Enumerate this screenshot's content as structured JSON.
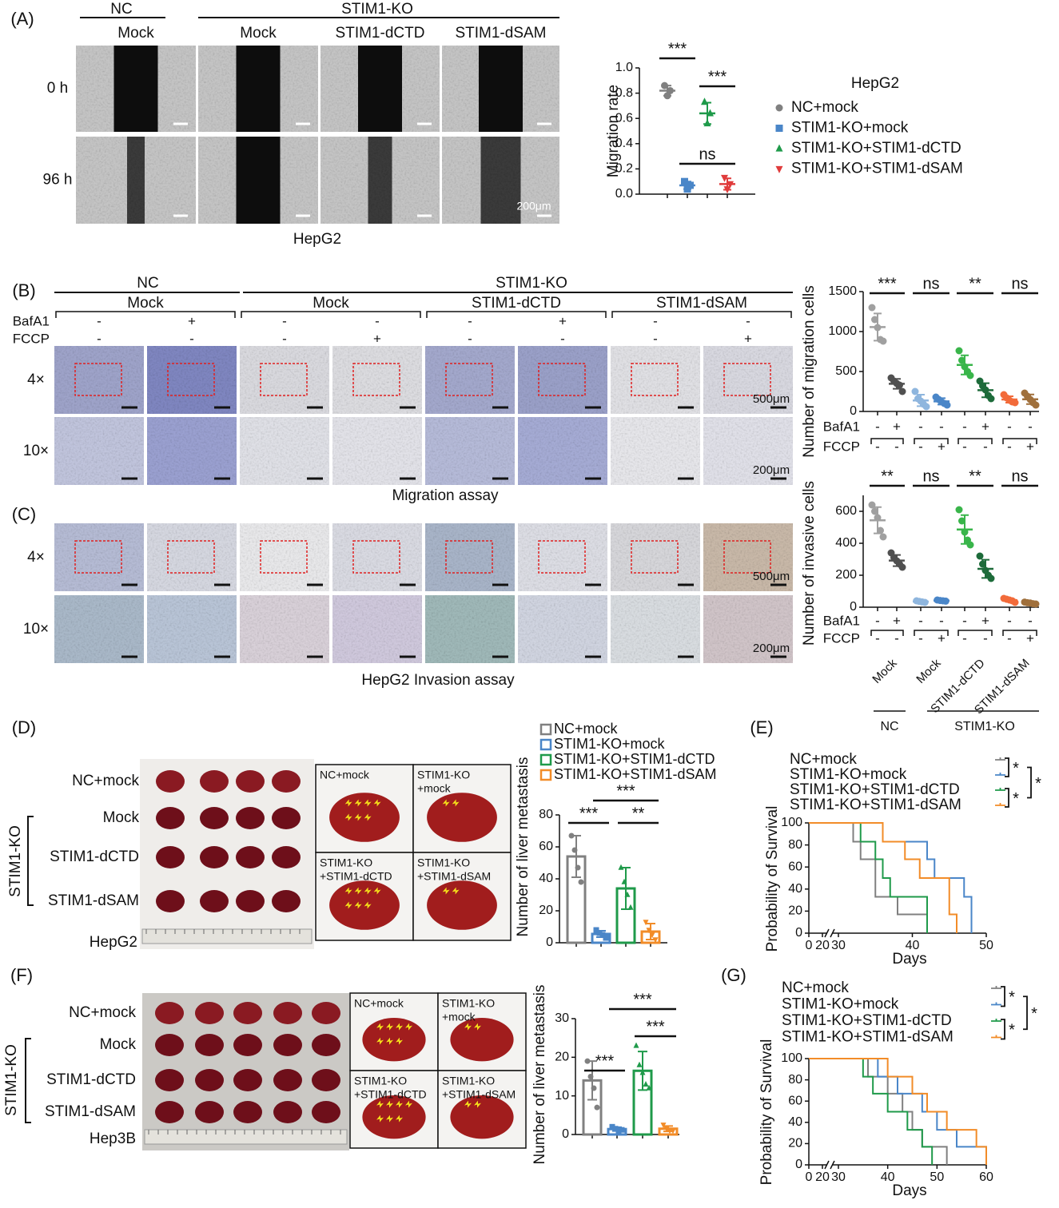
{
  "panels": {
    "labels": [
      "(A)",
      "(B)",
      "(C)",
      "(D)",
      "(E)",
      "(F)",
      "(G)"
    ],
    "a": {
      "header_groups": [
        "NC",
        "STIM1-KO"
      ],
      "columns": [
        "Mock",
        "Mock",
        "STIM1-dCTD",
        "STIM1-dSAM"
      ],
      "rows": [
        "0 h",
        "96 h"
      ],
      "scale_bar": "200μm",
      "caption": "HepG2"
    },
    "bc": {
      "header_groups": [
        "NC",
        "STIM1-KO"
      ],
      "columns": [
        "Mock",
        "Mock",
        "STIM1-dCTD",
        "STIM1-dSAM"
      ],
      "treatments": [
        {
          "name": "BafA1",
          "marks": [
            "-",
            "+",
            "-",
            "-",
            "-",
            "+",
            "-",
            "-"
          ]
        },
        {
          "name": "FCCP",
          "marks": [
            "-",
            "-",
            "-",
            "+",
            "-",
            "-",
            "-",
            "+"
          ]
        }
      ],
      "rows": [
        "4×",
        "10×"
      ],
      "scale_bars": [
        "500μm",
        "200μm"
      ],
      "captions": [
        "Migration assay",
        "HepG2 Invasion assay"
      ]
    },
    "d": {
      "rows": [
        "NC+mock",
        "Mock",
        "STIM1-dCTD",
        "STIM1-dSAM"
      ],
      "group": "STIM1-KO",
      "cell_line": "HepG2",
      "insets": [
        [
          "NC+mock"
        ],
        [
          "STIM1-KO",
          "+mock"
        ],
        [
          "STIM1-KO",
          "+STIM1-dCTD"
        ],
        [
          "STIM1-KO",
          "+STIM1-dSAM"
        ]
      ]
    },
    "f": {
      "rows": [
        "NC+mock",
        "Mock",
        "STIM1-dCTD",
        "STIM1-dSAM"
      ],
      "group": "STIM1-KO",
      "cell_line": "Hep3B",
      "insets": [
        [
          "NC+mock"
        ],
        [
          "STIM1-KO",
          "+mock"
        ],
        [
          "STIM1-KO",
          "+STIM1-dCTD"
        ],
        [
          "STIM1-KO",
          "+STIM1-dSAM"
        ]
      ]
    }
  },
  "chart_data": [
    {
      "type": "dot",
      "ylabel": "Migration rate",
      "legend_title": "HepG2",
      "ylim": [
        0,
        1
      ],
      "yticks": [
        {
          "value": 0,
          "label": "0.0"
        },
        0.2,
        0.4,
        0.6,
        0.8,
        {
          "value": 1,
          "label": "1.0"
        }
      ],
      "series": [
        {
          "name": "NC+mock",
          "color": "#808080",
          "marker": "circle",
          "values": [
            0.86,
            0.78,
            0.82
          ],
          "mean": 0.82,
          "sd": 0.04
        },
        {
          "name": "STIM1-KO+mock",
          "color": "#4a86c8",
          "marker": "square",
          "values": [
            0.1,
            0.04,
            0.07
          ],
          "mean": 0.07,
          "sd": 0.03
        },
        {
          "name": "STIM1-KO+STIM1-dCTD",
          "color": "#1f9a4a",
          "marker": "triangle",
          "values": [
            0.73,
            0.56,
            0.64
          ],
          "mean": 0.64,
          "sd": 0.085
        },
        {
          "name": "STIM1-KO+STIM1-dSAM",
          "color": "#e03c3c",
          "marker": "triangle-down",
          "values": [
            0.13,
            0.04,
            0.08
          ],
          "mean": 0.08,
          "sd": 0.045
        }
      ],
      "significance": [
        "***",
        "***",
        "ns"
      ]
    },
    {
      "type": "dot",
      "ylabel": "Number of  migration cells",
      "ylim": [
        0,
        1500
      ],
      "yticks": [
        0,
        500,
        1000,
        1500
      ],
      "series": [
        {
          "color": "#a0a0a0",
          "values": [
            1300,
            1150,
            1050,
            900,
            880
          ],
          "mean": 1056,
          "sd": 170
        },
        {
          "color": "#505050",
          "values": [
            420,
            380,
            350,
            330,
            250
          ],
          "mean": 346,
          "sd": 62
        },
        {
          "color": "#8fb6de",
          "values": [
            250,
            160,
            130,
            90,
            60
          ],
          "mean": 138,
          "sd": 72
        },
        {
          "color": "#4a86c8",
          "values": [
            180,
            150,
            120,
            100,
            80
          ],
          "mean": 126,
          "sd": 40
        },
        {
          "color": "#39b54a",
          "values": [
            760,
            640,
            560,
            500,
            450
          ],
          "mean": 582,
          "sd": 120
        },
        {
          "color": "#1d6b3a",
          "values": [
            380,
            320,
            270,
            200,
            160
          ],
          "mean": 266,
          "sd": 88
        },
        {
          "color": "#f26b3a",
          "values": [
            210,
            170,
            140,
            120,
            110
          ],
          "mean": 150,
          "sd": 40
        },
        {
          "color": "#a0703c",
          "values": [
            230,
            190,
            150,
            110,
            80
          ],
          "mean": 152,
          "sd": 60
        }
      ],
      "significance": [
        "***",
        "ns",
        "**",
        "ns"
      ]
    },
    {
      "type": "dot",
      "ylabel": "Number of  invasive cells",
      "ylim": [
        0,
        700
      ],
      "yticks": [
        0,
        200,
        400,
        600
      ],
      "series": [
        {
          "color": "#a0a0a0",
          "values": [
            640,
            600,
            560,
            480,
            440
          ],
          "mean": 544,
          "sd": 82
        },
        {
          "color": "#505050",
          "values": [
            340,
            310,
            290,
            270,
            250
          ],
          "mean": 292,
          "sd": 35
        },
        {
          "color": "#8fb6de",
          "values": [
            40,
            36,
            33,
            30
          ],
          "mean": 35,
          "sd": 4
        },
        {
          "color": "#4a86c8",
          "values": [
            45,
            42,
            40,
            38
          ],
          "mean": 41,
          "sd": 3
        },
        {
          "color": "#39b54a",
          "values": [
            610,
            540,
            470,
            420,
            390
          ],
          "mean": 486,
          "sd": 90
        },
        {
          "color": "#1d6b3a",
          "values": [
            320,
            270,
            230,
            200,
            180
          ],
          "mean": 240,
          "sd": 57
        },
        {
          "color": "#f26b3a",
          "values": [
            55,
            50,
            45,
            40,
            30
          ],
          "mean": 44,
          "sd": 10
        },
        {
          "color": "#a0703c",
          "values": [
            32,
            28,
            26,
            22,
            20
          ],
          "mean": 26,
          "sd": 5
        }
      ],
      "significance": [
        "**",
        "ns",
        "**",
        "ns"
      ]
    },
    {
      "type": "bar",
      "ylabel": "Number of liver metastasis",
      "ylim": [
        0,
        80
      ],
      "yticks": [
        0,
        20,
        40,
        60,
        80
      ],
      "series": [
        {
          "name": "NC+mock",
          "color": "#808080",
          "values": [
            67,
            58,
            47,
            38
          ],
          "mean": 54,
          "sd": 13
        },
        {
          "name": "STIM1-KO+mock",
          "color": "#4a86c8",
          "values": [
            8,
            6,
            5,
            3
          ],
          "mean": 5.5,
          "sd": 2
        },
        {
          "name": "STIM1-KO+STIM1-dCTD",
          "color": "#1f9a4a",
          "values": [
            47,
            38,
            30,
            22
          ],
          "mean": 34,
          "sd": 13
        },
        {
          "name": "STIM1-KO+STIM1-dSAM",
          "color": "#f28c28",
          "values": [
            13,
            8,
            5,
            2
          ],
          "mean": 7,
          "sd": 5
        }
      ],
      "significance": [
        "***",
        "***",
        "**"
      ]
    },
    {
      "type": "survival",
      "ylabel": "Probability of Survival",
      "xlabel": "Days",
      "xlim": [
        0,
        50
      ],
      "xticks": [
        0,
        20,
        30,
        40,
        50
      ],
      "axis_break": [
        20,
        30
      ],
      "ylim": [
        0,
        100
      ],
      "yticks": [
        0,
        20,
        40,
        60,
        80,
        100
      ],
      "series": [
        {
          "name": "NC+mock",
          "color": "#808080",
          "x": [
            0,
            32,
            33,
            35,
            38,
            42
          ],
          "values": [
            100,
            83,
            67,
            33,
            17,
            0
          ]
        },
        {
          "name": "STIM1-KO+mock",
          "color": "#4a86c8",
          "x": [
            0,
            36,
            42,
            43,
            47,
            48
          ],
          "values": [
            100,
            83,
            67,
            50,
            33,
            0
          ]
        },
        {
          "name": "STIM1-KO+STIM1-dCTD",
          "color": "#1f9a4a",
          "x": [
            0,
            33,
            35,
            36,
            37,
            42
          ],
          "values": [
            100,
            83,
            67,
            50,
            33,
            0
          ]
        },
        {
          "name": "STIM1-KO+STIM1-dSAM",
          "color": "#f28c28",
          "x": [
            0,
            36,
            39,
            41,
            45,
            46
          ],
          "values": [
            100,
            83,
            67,
            50,
            17,
            0
          ]
        }
      ],
      "significance": [
        "*",
        "*",
        "*"
      ]
    },
    {
      "type": "bar",
      "ylabel": "Number of liver metastasis",
      "ylim": [
        0,
        30
      ],
      "yticks": [
        0,
        10,
        20,
        30
      ],
      "series": [
        {
          "color": "#808080",
          "values": [
            19,
            15,
            12,
            7
          ],
          "mean": 14,
          "sd": 5
        },
        {
          "color": "#4a86c8",
          "values": [
            2,
            1.5,
            1,
            1.2
          ],
          "mean": 1.4,
          "sd": 0.5
        },
        {
          "color": "#1f9a4a",
          "values": [
            23,
            18,
            16,
            13,
            12
          ],
          "mean": 16.5,
          "sd": 5
        },
        {
          "color": "#f28c28",
          "values": [
            2.5,
            1.5,
            1,
            1
          ],
          "mean": 1.5,
          "sd": 0.7
        }
      ],
      "significance": [
        "***",
        "***",
        "***"
      ]
    },
    {
      "type": "survival",
      "ylabel": "Probability of Survival",
      "xlabel": "Days",
      "xlim": [
        0,
        60
      ],
      "xticks": [
        0,
        20,
        30,
        40,
        50,
        60
      ],
      "axis_break": [
        20,
        30
      ],
      "ylim": [
        0,
        100
      ],
      "yticks": [
        0,
        20,
        40,
        60,
        80,
        100
      ],
      "series": [
        {
          "name": "NC+mock",
          "color": "#808080",
          "x": [
            0,
            36,
            40,
            43,
            45,
            47,
            52
          ],
          "values": [
            100,
            83,
            67,
            50,
            33,
            17,
            0
          ]
        },
        {
          "name": "STIM1-KO+mock",
          "color": "#4a86c8",
          "x": [
            0,
            38,
            42,
            47,
            50,
            54,
            60
          ],
          "values": [
            100,
            83,
            67,
            50,
            33,
            17,
            0
          ]
        },
        {
          "name": "STIM1-KO+STIM1-dCTD",
          "color": "#1f9a4a",
          "x": [
            0,
            35,
            37,
            40,
            44,
            47,
            49
          ],
          "values": [
            100,
            83,
            67,
            50,
            33,
            17,
            0
          ]
        },
        {
          "name": "STIM1-KO+STIM1-dSAM",
          "color": "#f28c28",
          "x": [
            0,
            40,
            45,
            48,
            52,
            58,
            60
          ],
          "values": [
            100,
            83,
            67,
            50,
            33,
            17,
            0
          ]
        }
      ],
      "significance": [
        "*",
        "*",
        "*"
      ]
    }
  ]
}
